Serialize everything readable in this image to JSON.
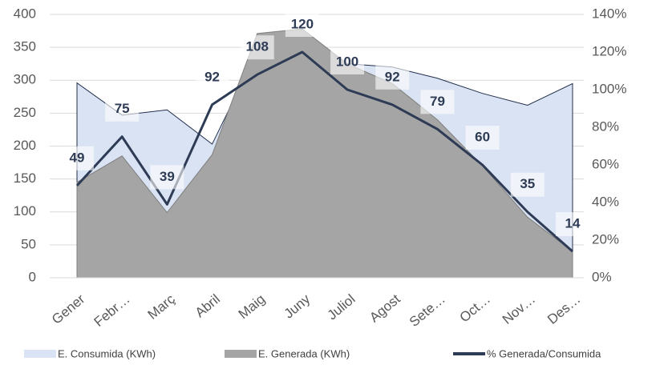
{
  "chart_data": {
    "type": "area-line",
    "categories": [
      "Gener",
      "Febr…",
      "Març",
      "Abril",
      "Maig",
      "Juny",
      "Juliol",
      "Agost",
      "Sete…",
      "Oct…",
      "Nov…",
      "Des…"
    ],
    "series": [
      {
        "name": "E. Consumida (KWh)",
        "color": "#dae3f3",
        "values": [
          296,
          247,
          255,
          203,
          343,
          315,
          325,
          320,
          303,
          280,
          262,
          295
        ]
      },
      {
        "name": "E. Generada (KWh)",
        "color": "#a5a5a5",
        "values": [
          145,
          185,
          99,
          187,
          371,
          378,
          325,
          295,
          240,
          170,
          92,
          40
        ]
      },
      {
        "name": "% Generada/Consumida",
        "color": "#2e3b55",
        "axis": "y2",
        "values": [
          49,
          75,
          39,
          92,
          108,
          120,
          100,
          92,
          79,
          60,
          35,
          14
        ]
      }
    ],
    "ylim": [
      0,
      400
    ],
    "yticks": [
      0,
      50,
      100,
      150,
      200,
      250,
      300,
      350,
      400
    ],
    "y2lim": [
      0,
      140
    ],
    "y2ticks": [
      {
        "value": 0,
        "label": "0%"
      },
      {
        "value": 20,
        "label": "20%"
      },
      {
        "value": 40,
        "label": "40%"
      },
      {
        "value": 60,
        "label": "60%"
      },
      {
        "value": 80,
        "label": "80%"
      },
      {
        "value": 100,
        "label": "100%"
      },
      {
        "value": 120,
        "label": "120%"
      },
      {
        "value": 140,
        "label": "140%"
      }
    ],
    "grid": true
  }
}
